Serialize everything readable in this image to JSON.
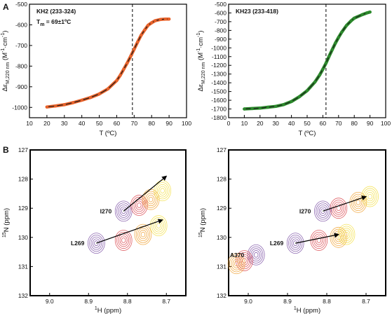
{
  "panel_letters": {
    "a": "A",
    "b": "B"
  },
  "chart_data": [
    {
      "type": "line",
      "panel": "A-left",
      "title": "KH2 (233-324)",
      "annotation": "T_m = 69±1ºC",
      "annotation_parts": {
        "t": "T",
        "sub": "m",
        "rest": " = 69±1ºC"
      },
      "xlabel": "T (ºC)",
      "ylabel_parts": {
        "main": "Δε",
        "sub": "M,220 nm",
        "unit_open": " (M",
        "sup1": "-1",
        "dot": "·cm",
        "sup2": "-1",
        "close": ")"
      },
      "xlim": [
        10,
        100
      ],
      "ylim": [
        -1050,
        -500
      ],
      "xticks": [
        "10",
        "20",
        "30",
        "40",
        "50",
        "60",
        "70",
        "80",
        "90",
        "100"
      ],
      "yticks": [
        "-1000",
        "-900",
        "-800",
        "-700",
        "-600",
        "-500"
      ],
      "vline_x": 69,
      "series": [
        {
          "color": "#e8622a",
          "x": [
            20,
            25,
            30,
            35,
            40,
            45,
            50,
            55,
            60,
            62,
            64,
            66,
            68,
            70,
            72,
            74,
            76,
            78,
            80,
            82,
            85,
            88,
            90
          ],
          "y": [
            -998,
            -993,
            -987,
            -977,
            -965,
            -952,
            -935,
            -910,
            -870,
            -845,
            -815,
            -785,
            -752,
            -718,
            -683,
            -650,
            -625,
            -602,
            -590,
            -580,
            -574,
            -572,
            -572
          ]
        }
      ]
    },
    {
      "type": "line",
      "panel": "A-right",
      "title": "KH23 (233-418)",
      "xlabel": "T (ºC)",
      "ylabel_parts": {
        "main": "Δε",
        "sub": "M,220 nm",
        "unit_open": " (M",
        "sup1": "-1",
        "dot": "·cm",
        "sup2": "-1",
        "close": ")"
      },
      "xlim": [
        0,
        100
      ],
      "ylim": [
        -1800,
        -500
      ],
      "xticks": [
        "0",
        "10",
        "20",
        "30",
        "40",
        "50",
        "60",
        "70",
        "80",
        "90",
        "100"
      ],
      "yticks": [
        "-1800",
        "-1700",
        "-1600",
        "-1500",
        "-1400",
        "-1300",
        "-1200",
        "-1100",
        "-1000",
        "-900",
        "-800",
        "-700",
        "-600",
        "-500"
      ],
      "vline_x": 62,
      "series": [
        {
          "color": "#2c8a2c",
          "x": [
            10,
            15,
            20,
            25,
            30,
            35,
            40,
            45,
            50,
            55,
            58,
            60,
            62,
            64,
            66,
            68,
            70,
            72,
            75,
            78,
            80,
            85,
            88,
            90
          ],
          "y": [
            -1700,
            -1695,
            -1690,
            -1680,
            -1670,
            -1650,
            -1615,
            -1560,
            -1490,
            -1390,
            -1310,
            -1245,
            -1175,
            -1095,
            -1020,
            -945,
            -880,
            -820,
            -745,
            -690,
            -660,
            -620,
            -600,
            -590
          ]
        }
      ]
    },
    {
      "type": "scatter",
      "panel": "B-left",
      "xlabel_parts": {
        "sup": "1",
        "main": "H (ppm)"
      },
      "ylabel_parts": {
        "sup": "15",
        "main": "N (ppm)"
      },
      "xlim": [
        9.05,
        8.65
      ],
      "ylim": [
        132,
        127
      ],
      "xticks": [
        "9.0",
        "8.9",
        "8.8",
        "8.7"
      ],
      "yticks": [
        "127",
        "128",
        "129",
        "130",
        "131",
        "132"
      ],
      "peaks": [
        {
          "label": "I270",
          "x": [
            8.81,
            8.77,
            8.74,
            8.71
          ],
          "y": [
            129.1,
            128.9,
            128.7,
            128.4
          ]
        },
        {
          "label": "L269",
          "x": [
            8.88,
            8.81,
            8.76,
            8.72
          ],
          "y": [
            130.2,
            130.1,
            129.9,
            129.6
          ]
        }
      ],
      "arrows": [
        {
          "from": [
            8.81,
            129.1
          ],
          "to": [
            8.7,
            127.9
          ]
        },
        {
          "from": [
            8.88,
            130.2
          ],
          "to": [
            8.71,
            129.4
          ]
        }
      ],
      "contour_colors": [
        "#7a4fa3",
        "#d9434a",
        "#f0a030",
        "#f3df45"
      ]
    },
    {
      "type": "scatter",
      "panel": "B-right",
      "xlabel_parts": {
        "sup": "1",
        "main": "H (ppm)"
      },
      "ylabel_parts": {
        "sup": "15",
        "main": "N (ppm)"
      },
      "xlim": [
        9.05,
        8.65
      ],
      "ylim": [
        132,
        127
      ],
      "xticks": [
        "9.0",
        "8.9",
        "8.8",
        "8.7"
      ],
      "yticks": [
        "127",
        "128",
        "129",
        "130",
        "131",
        "132"
      ],
      "peaks": [
        {
          "label": "I270",
          "x": [
            8.81,
            8.77,
            8.72,
            8.69
          ],
          "y": [
            129.1,
            129.0,
            128.8,
            128.6
          ]
        },
        {
          "label": "L269",
          "x": [
            8.88,
            8.82,
            8.77,
            8.75
          ],
          "y": [
            130.2,
            130.1,
            130.0,
            129.9
          ]
        },
        {
          "label": "A370",
          "x": [
            8.98,
            9.01,
            9.03
          ],
          "y": [
            130.6,
            130.8,
            130.9
          ]
        }
      ],
      "arrows": [
        {
          "from": [
            8.81,
            129.1
          ],
          "to": [
            8.7,
            128.6
          ]
        },
        {
          "from": [
            8.88,
            130.2
          ],
          "to": [
            8.77,
            129.9
          ]
        }
      ],
      "contour_colors": [
        "#7a4fa3",
        "#d9434a",
        "#f0a030",
        "#f3df45"
      ]
    }
  ]
}
